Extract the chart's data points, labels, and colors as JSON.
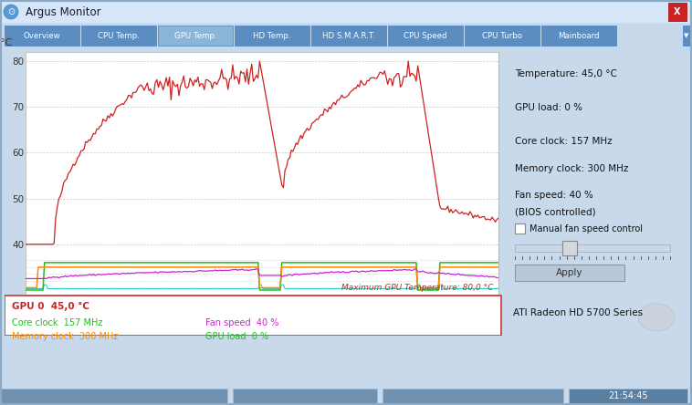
{
  "title": "Argus Monitor",
  "tabs": [
    "Overview",
    "CPU Temp.",
    "GPU Temp.",
    "HD Temp.",
    "HD S.M.A.R.T.",
    "CPU Speed",
    "CPU Turbo",
    "Mainboard"
  ],
  "active_tab_idx": 2,
  "window_bg": "#C8D9EC",
  "content_bg": "#7BA7CC",
  "plot_bg": "#FFFFFF",
  "titlebar_bg": "#D6E6F5",
  "tab_bg": "#5B8DC0",
  "active_tab_bg": "#8AB5D8",
  "right_panel_lines": [
    [
      "Temperature: 45,0 °C",
      0.91
    ],
    [
      "GPU load: 0 %",
      0.77
    ],
    [
      "Core clock: 157 MHz",
      0.63
    ],
    [
      "Memory clock: 300 MHz",
      0.52
    ],
    [
      "Fan speed: 40 %",
      0.41
    ],
    [
      "(BIOS controlled)",
      0.34
    ]
  ],
  "bottom_gpu_label": "GPU 0  45,0 °C",
  "bottom_core": "Core clock  157 MHz",
  "bottom_mem": "Memory clock  300 MHz",
  "bottom_fan": "Fan speed  40 %",
  "bottom_load": "GPU load  0 %",
  "bottom_model": "ATI Radeon HD 5700 Series",
  "statusbar_time": "21:54:45",
  "max_temp_label": "Maximum GPU Temperature: 80,0 °C",
  "ylabel": "°C",
  "yticks": [
    40,
    50,
    60,
    70,
    80
  ],
  "grid_color": "#BBBBBB",
  "temp_color": "#CC2222",
  "core_clock_color": "#22BB22",
  "memory_clock_color": "#FF8800",
  "fan_speed_color": "#CC22CC",
  "gpu_load_color": "#22CCCC",
  "close_btn_color": "#CC2222"
}
